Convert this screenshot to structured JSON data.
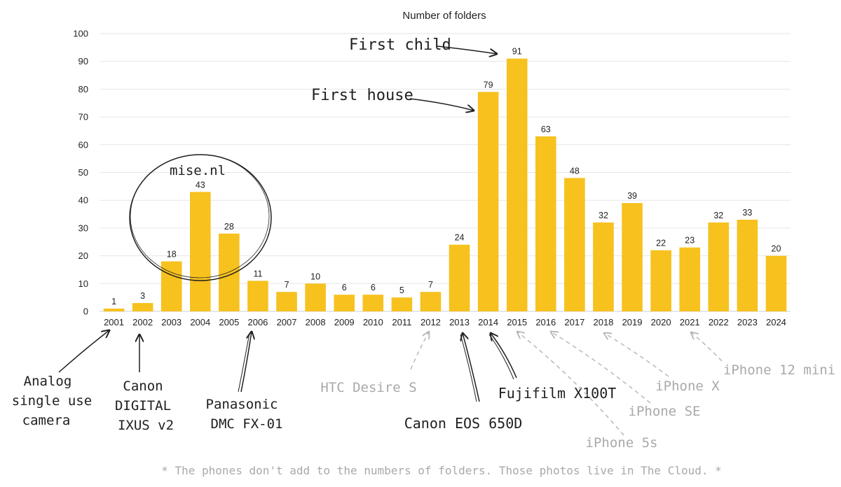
{
  "chart_data": {
    "type": "bar",
    "title": "Number of folders",
    "categories": [
      "2001",
      "2002",
      "2003",
      "2004",
      "2005",
      "2006",
      "2007",
      "2008",
      "2009",
      "2010",
      "2011",
      "2012",
      "2013",
      "2014",
      "2015",
      "2016",
      "2017",
      "2018",
      "2019",
      "2020",
      "2021",
      "2022",
      "2023",
      "2024"
    ],
    "values": [
      1,
      3,
      18,
      43,
      28,
      11,
      7,
      10,
      6,
      6,
      5,
      7,
      24,
      79,
      91,
      63,
      48,
      32,
      39,
      22,
      23,
      32,
      33,
      20
    ],
    "ylim": [
      0,
      100
    ],
    "yticks": [
      0,
      10,
      20,
      30,
      40,
      50,
      60,
      70,
      80,
      90,
      100
    ],
    "grid": true,
    "legend": "none",
    "xlabel": "",
    "ylabel": "",
    "colors": {
      "bar": "#F7C11E",
      "grid": "#E6E6E6"
    }
  },
  "annotations": {
    "analog": {
      "lines": [
        "Analog",
        "single use",
        "camera"
      ],
      "target": "2001"
    },
    "canon_ixus": {
      "lines": [
        "Canon",
        "DIGITAL",
        "IXUS v2"
      ],
      "target": "2002"
    },
    "panasonic": {
      "lines": [
        "Panasonic",
        "DMC FX-01"
      ],
      "target": "2006"
    },
    "htc": {
      "lines": [
        "HTC Desire S"
      ],
      "target": "2012"
    },
    "canon_eos": {
      "lines": [
        "Canon EOS 650D"
      ],
      "target": "2013"
    },
    "fujifilm": {
      "lines": [
        "Fujifilm X100T"
      ],
      "target": "2014"
    },
    "iphone_5s": {
      "lines": [
        "iPhone 5s"
      ],
      "target": "2015"
    },
    "iphone_se": {
      "lines": [
        "iPhone SE"
      ],
      "target": "2016"
    },
    "iphone_x": {
      "lines": [
        "iPhone X"
      ],
      "target": "2018"
    },
    "iphone_12_mini": {
      "lines": [
        "iPhone 12 mini"
      ],
      "target": "2021"
    },
    "mise": {
      "lines": [
        "mise.nl"
      ]
    },
    "first_house": {
      "lines": [
        "First house"
      ],
      "target": "2014"
    },
    "first_child": {
      "lines": [
        "First child"
      ],
      "target": "2015"
    }
  },
  "footnote": "* The phones don't add to the numbers of folders. Those photos live in The Cloud. *"
}
